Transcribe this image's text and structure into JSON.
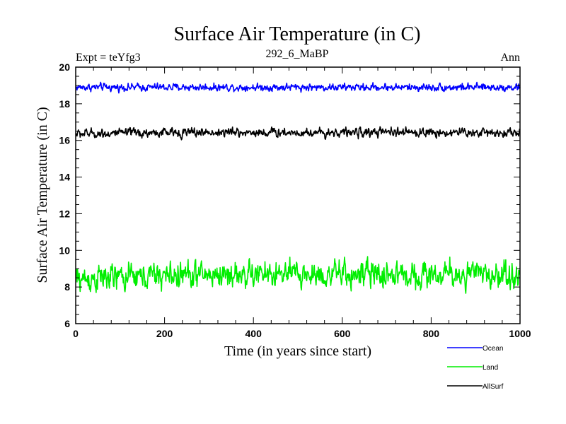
{
  "chart_data": {
    "type": "line",
    "title": "Surface Air Temperature (in C)",
    "subtitle_left": "Expt = teYfg3",
    "subtitle_center": "292_6_MaBP",
    "subtitle_right": "Ann",
    "xlabel": "Time (in years since start)",
    "ylabel": "Surface Air Temperature (in C)",
    "xlim": [
      0,
      1000
    ],
    "ylim": [
      6,
      20
    ],
    "x_major_ticks": [
      0,
      200,
      400,
      600,
      800,
      1000
    ],
    "x_tick_labels": [
      "0",
      "200",
      "400",
      "600",
      "800",
      "1000"
    ],
    "y_major_ticks": [
      6,
      8,
      10,
      12,
      14,
      16,
      18,
      20
    ],
    "y_tick_labels": [
      "6",
      "8",
      "10",
      "12",
      "14",
      "16",
      "18",
      "20"
    ],
    "x_start": 1,
    "x_end": 1000,
    "series": [
      {
        "name": "Ocean",
        "color": "#0000ff",
        "mean": 18.9,
        "noise": 0.09,
        "trend": 0.0
      },
      {
        "name": "Land",
        "color": "#00ee00",
        "mean": 8.55,
        "noise": 0.32,
        "trend": 0.25
      },
      {
        "name": "AllSurf",
        "color": "#000000",
        "mean": 16.4,
        "noise": 0.11,
        "trend": 0.07
      }
    ],
    "legend": {
      "position": "bottom-right",
      "entries": [
        "Ocean",
        "Land",
        "AllSurf"
      ]
    }
  }
}
